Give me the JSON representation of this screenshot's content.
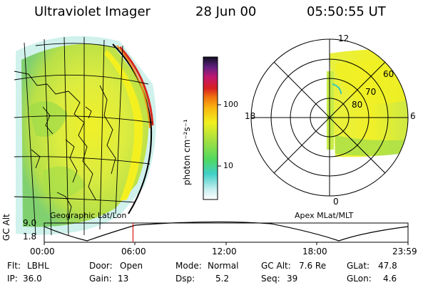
{
  "header": {
    "instrument": "Ultraviolet Imager",
    "date": "28 Jun 00",
    "time": "05:50:55 UT"
  },
  "colorbar": {
    "label": "photon cm⁻²s⁻¹",
    "ticks": [
      "100",
      "10"
    ],
    "scale": "log"
  },
  "geo_panel": {
    "label": "Geographic Lat/Lon"
  },
  "polar_panel": {
    "label": "Apex MLat/MLT",
    "mlt_labels": {
      "top": "12",
      "right": "6",
      "bottom": "0",
      "left": "18"
    },
    "lat_labels": [
      "60",
      "70",
      "80"
    ]
  },
  "timeline": {
    "ylabel": "GC Alt",
    "ymax": "9.0",
    "ymin": "1.8",
    "x_ticks": [
      "00:00",
      "06:00",
      "12:00",
      "18:00",
      "23:59"
    ],
    "marker_fraction": 0.244
  },
  "params": {
    "filter_label": "Flt:",
    "filter_value": "LBHL",
    "ip_label": "IP:",
    "ip_value": "36.0",
    "door_label": "Door:",
    "door_value": "Open",
    "gain_label": "Gain:",
    "gain_value": "13",
    "mode_label": "Mode:",
    "mode_value": "Normal",
    "dsp_label": "Dsp:",
    "dsp_value": "5.2",
    "gcalt_label": "GC Alt:",
    "gcalt_value": "7.6 Re",
    "seq_label": "Seq:",
    "seq_value": "39",
    "glat_label": "GLat:",
    "glat_value": "47.8",
    "glon_label": "GLon:",
    "glon_value": "4.6"
  },
  "colors": {
    "aurora_low": "#d8ec4a",
    "aurora_mid": "#f4f020",
    "aurora_green": "#8cd84a",
    "aurora_cyan": "#40c8b8",
    "aurora_red": "#d82820",
    "marker": "#d81818"
  }
}
